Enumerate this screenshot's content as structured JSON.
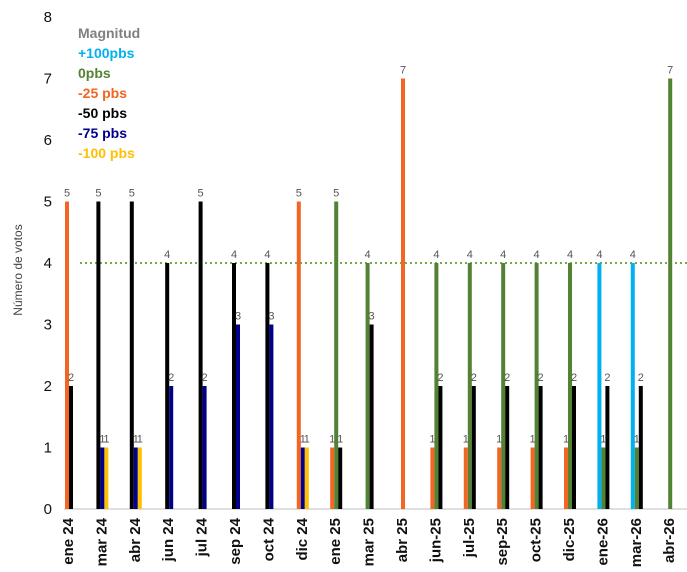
{
  "chart_data": {
    "type": "bar",
    "ylabel": "Número de votos",
    "ylim": [
      0,
      8
    ],
    "yticks": [
      0,
      1,
      2,
      3,
      4,
      5,
      6,
      7,
      8
    ],
    "categories": [
      "ene 24",
      "mar 24",
      "abr 24",
      "jun 24",
      "jul 24",
      "sep 24",
      "oct 24",
      "dic 24",
      "ene 25",
      "mar 25",
      "abr 25",
      "jun-25",
      "jul-25",
      "sep-25",
      "oct-25",
      "dic-25",
      "ene-26",
      "mar-26",
      "abr-26"
    ],
    "legend_title": "Magnitud",
    "legend_position": "top-left",
    "reference_line": {
      "value": 4,
      "style": "dotted",
      "color": "#70ad47"
    },
    "series": [
      {
        "name": "+100pbs",
        "color": "#00b0f0",
        "values": [
          null,
          null,
          null,
          null,
          null,
          null,
          null,
          null,
          null,
          null,
          null,
          null,
          null,
          null,
          null,
          null,
          4,
          4,
          null
        ]
      },
      {
        "name": "0pbs",
        "color": "#548235",
        "values": [
          null,
          null,
          null,
          null,
          null,
          null,
          null,
          null,
          5,
          4,
          null,
          4,
          4,
          4,
          4,
          4,
          1,
          1,
          7
        ]
      },
      {
        "name": "-25 pbs",
        "color": "#f26522",
        "values": [
          5,
          null,
          null,
          null,
          null,
          null,
          null,
          5,
          1,
          null,
          7,
          1,
          1,
          1,
          1,
          1,
          null,
          null,
          null
        ]
      },
      {
        "name": "-50 pbs",
        "color": "#000000",
        "values": [
          2,
          5,
          5,
          4,
          5,
          4,
          4,
          null,
          1,
          3,
          null,
          2,
          2,
          2,
          2,
          2,
          2,
          2,
          null
        ]
      },
      {
        "name": "-75 pbs",
        "color": "#00008b",
        "values": [
          null,
          1,
          1,
          2,
          2,
          3,
          3,
          1,
          null,
          null,
          null,
          null,
          null,
          null,
          null,
          null,
          null,
          null,
          null
        ]
      },
      {
        "name": "-100 pbs",
        "color": "#ffc000",
        "values": [
          null,
          1,
          1,
          null,
          null,
          null,
          null,
          1,
          null,
          null,
          null,
          null,
          null,
          null,
          null,
          null,
          null,
          null,
          null
        ]
      }
    ]
  }
}
